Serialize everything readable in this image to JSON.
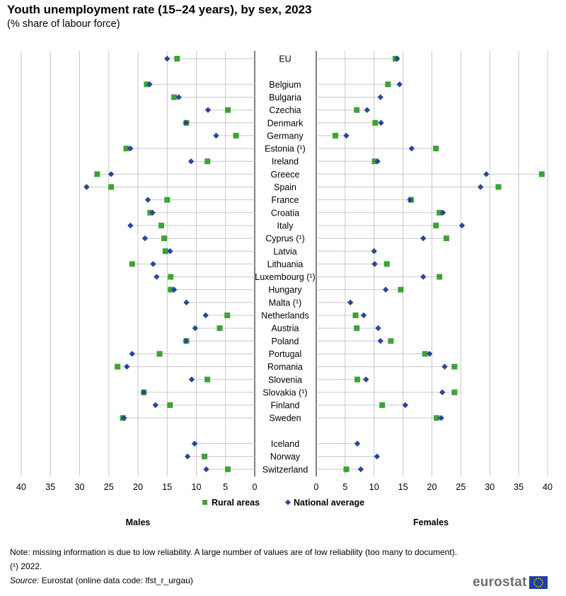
{
  "title": "Youth unemployment rate (15–24 years), by sex, 2023",
  "subtitle": "(% share of labour force)",
  "colors": {
    "rural": "#3da336",
    "national": "#2a44a0",
    "grid": "#c8c8c8",
    "axis": "#000000"
  },
  "legend": {
    "rural": "Rural areas",
    "national": "National average"
  },
  "notes": {
    "note": "Note: missing information is due to low reliability. A large number of values are of low reliability (too many to document).",
    "footnote": "(¹) 2022.",
    "source_label": "Source:",
    "source_text": " Eurostat (online data code: lfst_r_urgau)"
  },
  "logo": {
    "text": "eurostat"
  },
  "chart_data": {
    "type": "scatter",
    "panels": [
      {
        "name": "Males",
        "xlim": [
          40,
          0
        ],
        "ticks": [
          40,
          35,
          30,
          25,
          20,
          15,
          10,
          5,
          0
        ]
      },
      {
        "name": "Females",
        "xlim": [
          0,
          40
        ],
        "ticks": [
          0,
          5,
          10,
          15,
          20,
          25,
          30,
          35,
          40
        ]
      }
    ],
    "categories": [
      "EU",
      "",
      "Belgium",
      "Bulgaria",
      "Czechia",
      "Denmark",
      "Germany",
      "Estonia (¹)",
      "Ireland",
      "Greece",
      "Spain",
      "France",
      "Croatia",
      "Italy",
      "Cyprus (¹)",
      "Latvia",
      "Lithuania",
      "Luxembourg (¹)",
      "Hungary",
      "Malta (¹)",
      "Netherlands",
      "Austria",
      "Poland",
      "Portugal",
      "Romania",
      "Slovenia",
      "Slovakia (¹)",
      "Finland",
      "Sweden",
      "",
      "Iceland",
      "Norway",
      "Switzerland"
    ],
    "series": [
      {
        "name": "Rural areas",
        "sex": "Males",
        "marker": "square",
        "values": [
          13.3,
          null,
          18.5,
          13.8,
          4.6,
          11.7,
          3.2,
          22.0,
          8.1,
          27.0,
          24.6,
          15.0,
          17.9,
          16.0,
          15.5,
          15.3,
          21.0,
          14.4,
          14.4,
          null,
          4.7,
          6.0,
          11.7,
          16.3,
          23.5,
          8.1,
          19.0,
          14.5,
          22.6,
          null,
          null,
          8.6,
          4.6
        ]
      },
      {
        "name": "National average",
        "sex": "Males",
        "marker": "diamond",
        "values": [
          15.0,
          null,
          18.0,
          13.0,
          8.0,
          11.8,
          6.6,
          21.3,
          10.9,
          24.6,
          28.8,
          18.3,
          17.5,
          21.3,
          18.8,
          14.5,
          17.4,
          16.8,
          13.8,
          11.7,
          8.4,
          10.2,
          11.8,
          21.0,
          21.9,
          10.8,
          19.0,
          17.0,
          22.4,
          null,
          10.3,
          11.5,
          8.3
        ]
      },
      {
        "name": "Rural areas",
        "sex": "Females",
        "marker": "square",
        "values": [
          13.7,
          null,
          12.4,
          null,
          7.0,
          10.2,
          3.3,
          20.7,
          10.1,
          39.0,
          31.5,
          16.4,
          21.3,
          20.7,
          22.5,
          null,
          12.2,
          21.3,
          14.6,
          null,
          6.8,
          7.0,
          12.9,
          18.8,
          23.9,
          7.1,
          23.9,
          11.4,
          20.8,
          null,
          null,
          null,
          5.2
        ]
      },
      {
        "name": "National average",
        "sex": "Females",
        "marker": "diamond",
        "values": [
          14.0,
          null,
          14.4,
          11.1,
          8.8,
          11.2,
          5.2,
          16.5,
          10.6,
          29.4,
          28.4,
          16.2,
          21.9,
          25.2,
          18.5,
          10.0,
          10.1,
          18.5,
          12.0,
          5.9,
          8.2,
          10.7,
          11.1,
          19.6,
          22.2,
          8.6,
          21.8,
          15.4,
          21.6,
          null,
          7.1,
          10.5,
          7.7
        ]
      }
    ]
  }
}
